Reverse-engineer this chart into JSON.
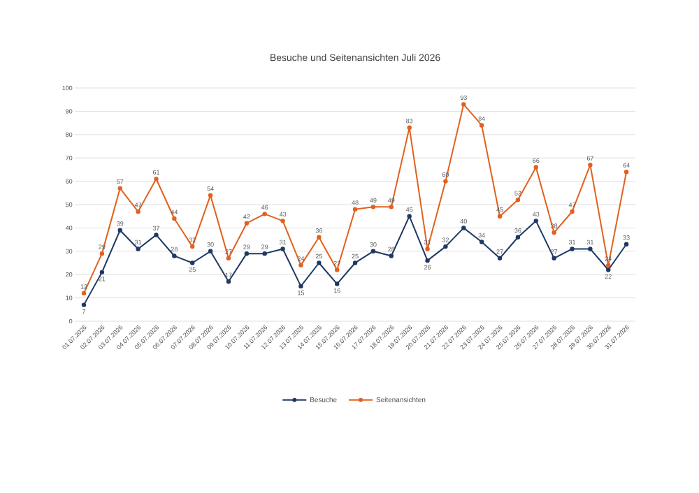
{
  "chart_data": {
    "type": "line",
    "title": "Besuche und Seitenansichten Juli 2026",
    "categories": [
      "01.07.2026",
      "02.07.2026",
      "03.07.2026",
      "04.07.2026",
      "05.07.2026",
      "06.07.2026",
      "07.07.2026",
      "08.07.2026",
      "09.07.2026",
      "10.07.2026",
      "11.07.2026",
      "12.07.2026",
      "13.07.2026",
      "14.07.2026",
      "15.07.2026",
      "16.07.2026",
      "17.07.2026",
      "18.07.2026",
      "19.07.2026",
      "20.07.2026",
      "21.07.2026",
      "22.07.2026",
      "23.07.2026",
      "24.07.2026",
      "25.07.2026",
      "26.07.2026",
      "27.07.2026",
      "28.07.2026",
      "29.07.2026",
      "30.07.2026",
      "31.07.2026"
    ],
    "series": [
      {
        "name": "Besuche",
        "color": "#1f3864",
        "values": [
          7,
          21,
          39,
          31,
          37,
          28,
          25,
          30,
          17,
          29,
          29,
          31,
          15,
          25,
          16,
          25,
          30,
          28,
          45,
          26,
          32,
          40,
          34,
          27,
          36,
          43,
          27,
          31,
          31,
          22,
          33
        ]
      },
      {
        "name": "Seitenansichten",
        "color": "#e2601e",
        "values": [
          12,
          29,
          57,
          47,
          61,
          44,
          32,
          54,
          27,
          42,
          46,
          43,
          24,
          36,
          22,
          48,
          49,
          49,
          83,
          31,
          60,
          93,
          84,
          45,
          52,
          66,
          38,
          47,
          67,
          24,
          64
        ]
      }
    ],
    "ylim": [
      0,
      100
    ],
    "yticks": [
      0,
      10,
      20,
      30,
      40,
      50,
      60,
      70,
      80,
      90,
      100
    ],
    "grid": "y",
    "legend": "bottom",
    "marker": "circle",
    "line_style": "solid",
    "data_labels": true
  }
}
